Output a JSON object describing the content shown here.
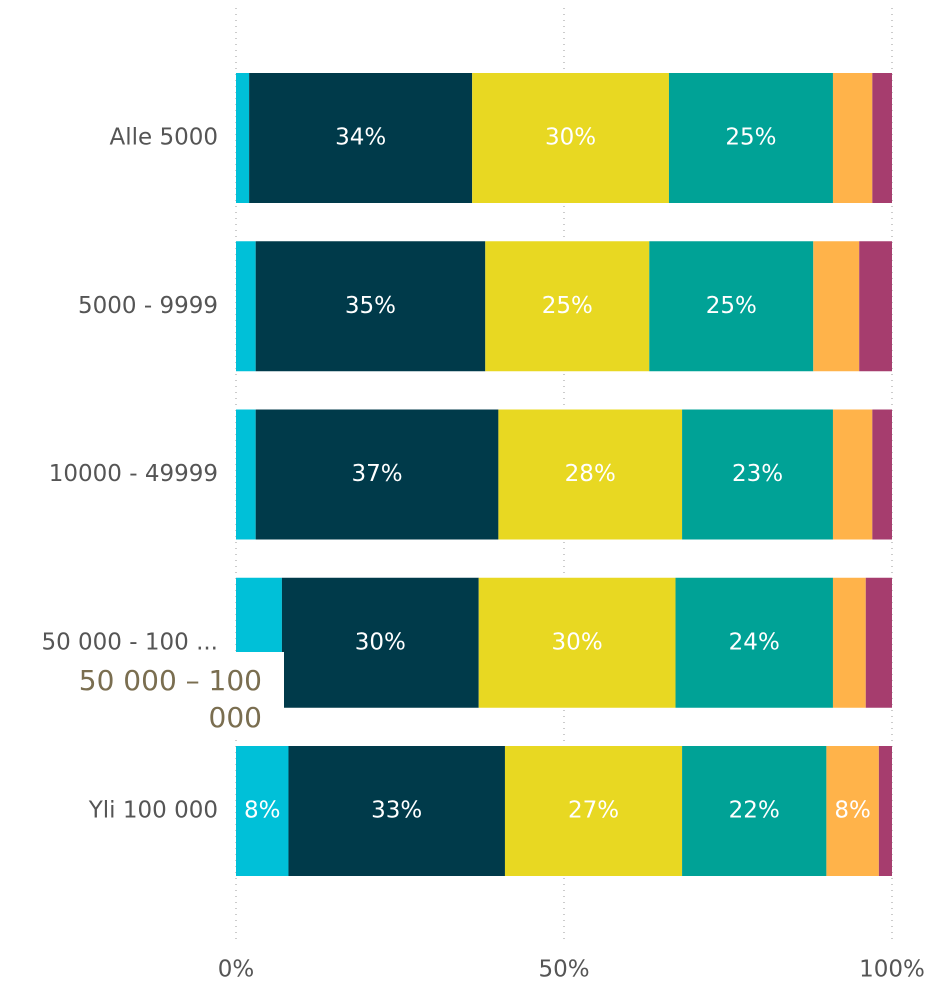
{
  "chart_data": {
    "type": "stacked-bar-horizontal",
    "categories": [
      "Alle 5000",
      "5000 - 9999",
      "10000 - 49999",
      "50 000 - 100 ...",
      "Yli 100 000"
    ],
    "series": [
      {
        "color": "#00c0d8",
        "values": [
          2,
          3,
          3,
          7,
          8
        ],
        "value_labels": [
          null,
          null,
          null,
          null,
          "8%"
        ]
      },
      {
        "color": "#003a4a",
        "values": [
          34,
          35,
          37,
          30,
          33
        ],
        "value_labels": [
          "34%",
          "35%",
          "37%",
          "30%",
          "33%"
        ]
      },
      {
        "color": "#e8d822",
        "values": [
          30,
          25,
          28,
          30,
          27
        ],
        "value_labels": [
          "30%",
          "25%",
          "28%",
          "30%",
          "27%"
        ]
      },
      {
        "color": "#00a296",
        "values": [
          25,
          25,
          23,
          24,
          22
        ],
        "value_labels": [
          "25%",
          "25%",
          "23%",
          "24%",
          "22%"
        ]
      },
      {
        "color": "#ffb34a",
        "values": [
          6,
          7,
          6,
          5,
          8
        ],
        "value_labels": [
          null,
          null,
          null,
          null,
          "8%"
        ]
      },
      {
        "color": "#a63d6e",
        "values": [
          3,
          5,
          3,
          4,
          2
        ],
        "value_labels": [
          null,
          null,
          null,
          null,
          null
        ]
      }
    ],
    "xlim": [
      0,
      100
    ],
    "xticks": [
      {
        "value": 0,
        "label": "0%"
      },
      {
        "value": 50,
        "label": "50%"
      },
      {
        "value": 100,
        "label": "100%"
      }
    ],
    "grid": true,
    "tooltip": "50 000 – 100 000"
  }
}
